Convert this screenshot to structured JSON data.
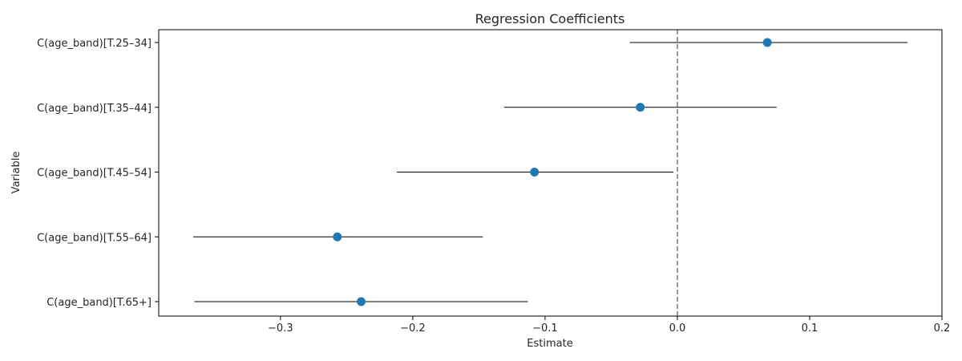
{
  "chart_data": {
    "type": "scatter",
    "title": "Regression Coefficients",
    "xlabel": "Estimate",
    "ylabel": "Variable",
    "xlim": [
      -0.392,
      0.2
    ],
    "xticks": [
      -0.3,
      -0.2,
      -0.1,
      0.0,
      0.1,
      0.2
    ],
    "xtick_labels": [
      "−0.3",
      "−0.2",
      "−0.1",
      "0.0",
      "0.1",
      "0.2"
    ],
    "grid": false,
    "reference_line": {
      "x": 0.0,
      "style": "dashed",
      "color": "#808080"
    },
    "marker_color": "#1f77b4",
    "errorbar_color": "#000000",
    "points": [
      {
        "label": "C(age_band)[T.25–34]",
        "estimate": 0.068,
        "ci_low": -0.036,
        "ci_high": 0.174
      },
      {
        "label": "C(age_band)[T.35–44]",
        "estimate": -0.028,
        "ci_low": -0.131,
        "ci_high": 0.075
      },
      {
        "label": "C(age_band)[T.45–54]",
        "estimate": -0.108,
        "ci_low": -0.212,
        "ci_high": -0.003
      },
      {
        "label": "C(age_band)[T.55–64]",
        "estimate": -0.257,
        "ci_low": -0.366,
        "ci_high": -0.147
      },
      {
        "label": "C(age_band)[T.65+]",
        "estimate": -0.239,
        "ci_low": -0.365,
        "ci_high": -0.113
      }
    ]
  }
}
